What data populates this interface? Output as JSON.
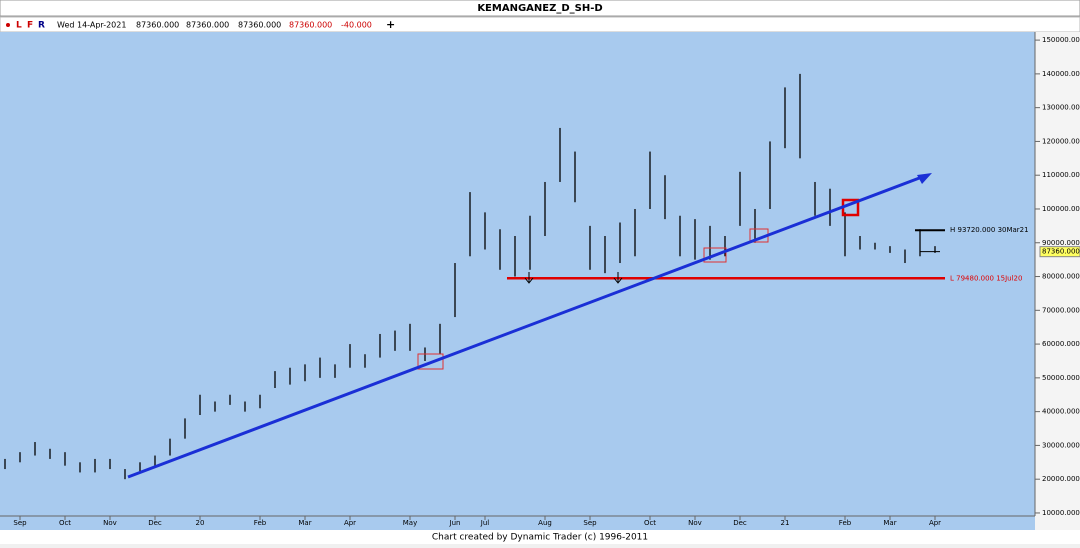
{
  "header": {
    "title": "KEMANGANEZ_D_SH-D",
    "toggles": [
      "L",
      "F",
      "R"
    ],
    "quote": [
      "Wed 14-Apr-2021",
      "87360.000",
      "87360.000",
      "87360.000",
      "87360.000",
      "-40.000"
    ],
    "add": "+"
  },
  "chart_data": {
    "type": "hl",
    "color": "#000000",
    "categories": [
      null,
      "Sep",
      null,
      null,
      "Oct",
      null,
      null,
      "Nov",
      null,
      null,
      "Dec",
      null,
      null,
      "20",
      null,
      null,
      null,
      "Feb",
      null,
      null,
      "Mar",
      null,
      null,
      "Apr",
      null,
      null,
      null,
      "May",
      null,
      null,
      "Jun",
      null,
      "Jul",
      null,
      null,
      null,
      "Aug",
      null,
      null,
      "Sep",
      null,
      null,
      null,
      "Oct",
      null,
      null,
      "Nov",
      null,
      null,
      "Dec",
      null,
      null,
      "21",
      null,
      null,
      null,
      "Feb",
      null,
      null,
      "Mar",
      null,
      null,
      "Apr"
    ],
    "high": [
      26000,
      28000,
      31000,
      29000,
      28000,
      25000,
      26000,
      26000,
      23000,
      25000,
      27000,
      32000,
      38000,
      45000,
      43000,
      45000,
      43000,
      45000,
      52000,
      53000,
      54000,
      56000,
      54000,
      60000,
      57000,
      63000,
      64000,
      66000,
      59000,
      66000,
      84000,
      105000,
      99000,
      94000,
      92000,
      98000,
      108000,
      124000,
      117000,
      95000,
      92000,
      96000,
      100000,
      117000,
      110000,
      98000,
      97000,
      95000,
      92000,
      111000,
      100000,
      120000,
      136000,
      140000,
      108000,
      106000,
      99000,
      92000,
      90000,
      89000,
      88000,
      94000,
      89000
    ],
    "low": [
      23000,
      25000,
      27000,
      26000,
      24000,
      22000,
      22000,
      23000,
      20000,
      22000,
      24000,
      27000,
      32000,
      39000,
      40000,
      42000,
      40000,
      41000,
      47000,
      48000,
      49000,
      50000,
      50000,
      53000,
      53000,
      56000,
      58000,
      58000,
      55000,
      57000,
      68000,
      86000,
      88000,
      82000,
      80000,
      82000,
      92000,
      108000,
      102000,
      82000,
      81000,
      84000,
      86000,
      100000,
      97000,
      86000,
      85000,
      85000,
      86000,
      95000,
      90000,
      100000,
      118000,
      115000,
      98000,
      95000,
      86000,
      88000,
      88000,
      87000,
      84000,
      86000,
      87000
    ],
    "ylim": [
      9100,
      152400
    ],
    "yticks": [
      {
        "value": 150000,
        "label": "150000.000"
      },
      {
        "value": 140000,
        "label": "140000.000"
      },
      {
        "value": 130000,
        "label": "130000.000"
      },
      {
        "value": 120000,
        "label": "120000.000"
      },
      {
        "value": 110000,
        "label": "110000.000"
      },
      {
        "value": 100000,
        "label": "100000.000"
      },
      {
        "value": 90000,
        "label": "90000.000"
      },
      {
        "value": 80000,
        "label": "80000.000"
      },
      {
        "value": 70000,
        "label": "70000.000"
      },
      {
        "value": 60000,
        "label": "60000.000"
      },
      {
        "value": 50000,
        "label": "50000.000"
      },
      {
        "value": 40000,
        "label": "40000.000"
      },
      {
        "value": 30000,
        "label": "30000.000"
      },
      {
        "value": 20000,
        "label": "20000.000"
      },
      {
        "value": 10000,
        "label": "10000.000"
      }
    ],
    "high_line": {
      "value": 93720,
      "label": "H 93720.000 30Mar21"
    },
    "low_line": {
      "value": 79480,
      "label": "L 79480.000 15Jul20"
    },
    "last_price": {
      "value": 87360,
      "label": "87360.000"
    }
  },
  "footer": "Chart created by Dynamic Trader  (c) 1996-2011"
}
